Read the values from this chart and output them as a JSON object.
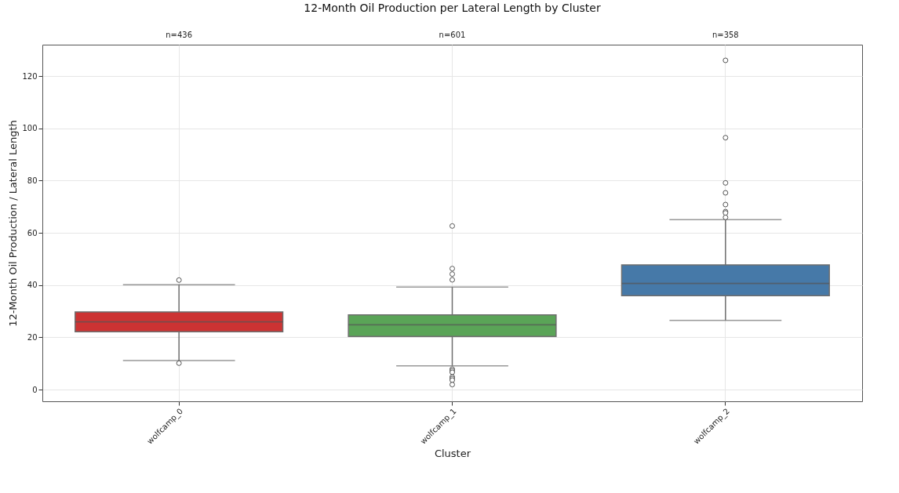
{
  "chart_data": {
    "type": "box",
    "title": "12-Month Oil Production per Lateral Length by Cluster",
    "xlabel": "Cluster",
    "ylabel": "12-Month Oil Production / Lateral Length",
    "categories": [
      "wolfcamp_0",
      "wolfcamp_1",
      "wolfcamp_2"
    ],
    "colors": [
      "#cc3333",
      "#5aa457",
      "#4679a8"
    ],
    "boxes": [
      {
        "low": 11.1,
        "q1": 22.1,
        "median": 25.9,
        "q3": 29.7,
        "high": 40.1,
        "outliers": [
          41.9,
          10.1
        ]
      },
      {
        "low": 9.1,
        "q1": 20.3,
        "median": 24.8,
        "q3": 28.6,
        "high": 39.2,
        "outliers": [
          62.6,
          46.3,
          44.2,
          42.0,
          7.8,
          7.2,
          6.6,
          4.8,
          4.2,
          3.6,
          1.9
        ]
      },
      {
        "low": 26.5,
        "q1": 35.9,
        "median": 40.6,
        "q3": 47.7,
        "high": 65.0,
        "outliers": [
          126.0,
          96.4,
          79.1,
          75.3,
          70.8,
          68.1,
          67.6,
          65.9
        ]
      }
    ],
    "annotations": [
      "n=436",
      "n=601",
      "n=358"
    ],
    "ylim": [
      -4.5,
      132
    ],
    "yticks": [
      0,
      20,
      40,
      60,
      80,
      100,
      120
    ],
    "grid": true
  }
}
